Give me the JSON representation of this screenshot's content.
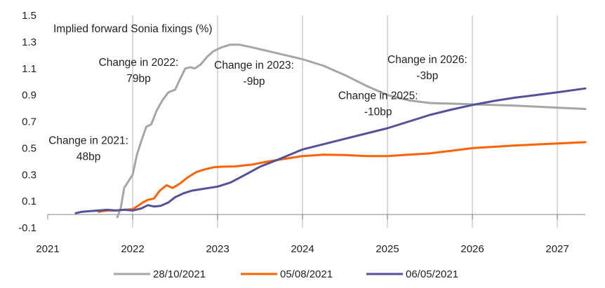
{
  "chart_data": {
    "type": "line",
    "title": "",
    "ylabel": "Implied forward Sonia fixings (%)",
    "xlabel": "",
    "xlim": [
      2021,
      2027.33
    ],
    "ylim": [
      -0.1,
      1.5
    ],
    "x_ticks": [
      2021,
      2022,
      2023,
      2024,
      2025,
      2026,
      2027
    ],
    "x_tick_labels": [
      "2021",
      "2022",
      "2023",
      "2024",
      "2025",
      "2026",
      "2027"
    ],
    "y_ticks": [
      -0.1,
      0.1,
      0.3,
      0.5,
      0.7,
      0.9,
      1.1,
      1.3,
      1.5
    ],
    "y_tick_labels": [
      "-0.1",
      "0.1",
      "0.3",
      "0.5",
      "0.7",
      "0.9",
      "1.1",
      "1.3",
      "1.5"
    ],
    "grid": "vertical",
    "legend": "bottom",
    "series": [
      {
        "name": "28/10/2021",
        "color": "#a6a6a6",
        "points": [
          [
            2021.82,
            -0.02
          ],
          [
            2021.86,
            0.05
          ],
          [
            2021.9,
            0.2
          ],
          [
            2021.95,
            0.25
          ],
          [
            2022.0,
            0.3
          ],
          [
            2022.05,
            0.45
          ],
          [
            2022.1,
            0.55
          ],
          [
            2022.16,
            0.66
          ],
          [
            2022.22,
            0.68
          ],
          [
            2022.28,
            0.78
          ],
          [
            2022.35,
            0.86
          ],
          [
            2022.42,
            0.92
          ],
          [
            2022.5,
            0.94
          ],
          [
            2022.55,
            1.01
          ],
          [
            2022.62,
            1.1
          ],
          [
            2022.68,
            1.11
          ],
          [
            2022.73,
            1.1
          ],
          [
            2022.8,
            1.13
          ],
          [
            2022.88,
            1.19
          ],
          [
            2022.95,
            1.23
          ],
          [
            2023.05,
            1.26
          ],
          [
            2023.15,
            1.28
          ],
          [
            2023.25,
            1.28
          ],
          [
            2023.4,
            1.26
          ],
          [
            2023.6,
            1.23
          ],
          [
            2023.8,
            1.2
          ],
          [
            2024.0,
            1.17
          ],
          [
            2024.25,
            1.12
          ],
          [
            2024.5,
            1.05
          ],
          [
            2024.75,
            0.97
          ],
          [
            2025.0,
            0.9
          ],
          [
            2025.25,
            0.86
          ],
          [
            2025.5,
            0.84
          ],
          [
            2025.75,
            0.835
          ],
          [
            2026.0,
            0.83
          ],
          [
            2026.5,
            0.82
          ],
          [
            2027.0,
            0.805
          ],
          [
            2027.33,
            0.795
          ]
        ]
      },
      {
        "name": "05/08/2021",
        "color": "#ff6200",
        "points": [
          [
            2021.6,
            0.02
          ],
          [
            2021.7,
            0.03
          ],
          [
            2021.8,
            0.03
          ],
          [
            2021.9,
            0.035
          ],
          [
            2022.0,
            0.04
          ],
          [
            2022.05,
            0.06
          ],
          [
            2022.12,
            0.09
          ],
          [
            2022.18,
            0.11
          ],
          [
            2022.25,
            0.12
          ],
          [
            2022.32,
            0.18
          ],
          [
            2022.4,
            0.22
          ],
          [
            2022.47,
            0.2
          ],
          [
            2022.55,
            0.23
          ],
          [
            2022.65,
            0.28
          ],
          [
            2022.75,
            0.32
          ],
          [
            2022.85,
            0.34
          ],
          [
            2022.95,
            0.355
          ],
          [
            2023.05,
            0.36
          ],
          [
            2023.2,
            0.362
          ],
          [
            2023.4,
            0.375
          ],
          [
            2023.6,
            0.4
          ],
          [
            2023.8,
            0.42
          ],
          [
            2024.0,
            0.44
          ],
          [
            2024.25,
            0.45
          ],
          [
            2024.5,
            0.448
          ],
          [
            2024.75,
            0.44
          ],
          [
            2025.0,
            0.44
          ],
          [
            2025.25,
            0.45
          ],
          [
            2025.5,
            0.46
          ],
          [
            2025.75,
            0.48
          ],
          [
            2026.0,
            0.5
          ],
          [
            2026.5,
            0.52
          ],
          [
            2027.0,
            0.535
          ],
          [
            2027.33,
            0.545
          ]
        ]
      },
      {
        "name": "06/05/2021",
        "color": "#525199",
        "points": [
          [
            2021.33,
            0.01
          ],
          [
            2021.4,
            0.02
          ],
          [
            2021.5,
            0.025
          ],
          [
            2021.6,
            0.03
          ],
          [
            2021.7,
            0.035
          ],
          [
            2021.8,
            0.03
          ],
          [
            2021.9,
            0.035
          ],
          [
            2022.0,
            0.03
          ],
          [
            2022.1,
            0.045
          ],
          [
            2022.18,
            0.07
          ],
          [
            2022.25,
            0.06
          ],
          [
            2022.33,
            0.065
          ],
          [
            2022.42,
            0.09
          ],
          [
            2022.5,
            0.13
          ],
          [
            2022.6,
            0.16
          ],
          [
            2022.7,
            0.18
          ],
          [
            2022.8,
            0.19
          ],
          [
            2022.9,
            0.2
          ],
          [
            2023.0,
            0.21
          ],
          [
            2023.15,
            0.24
          ],
          [
            2023.3,
            0.29
          ],
          [
            2023.5,
            0.36
          ],
          [
            2023.7,
            0.41
          ],
          [
            2024.0,
            0.49
          ],
          [
            2024.25,
            0.53
          ],
          [
            2024.5,
            0.57
          ],
          [
            2024.75,
            0.61
          ],
          [
            2025.0,
            0.65
          ],
          [
            2025.25,
            0.7
          ],
          [
            2025.5,
            0.75
          ],
          [
            2025.75,
            0.79
          ],
          [
            2026.0,
            0.825
          ],
          [
            2026.25,
            0.855
          ],
          [
            2026.5,
            0.88
          ],
          [
            2026.75,
            0.9
          ],
          [
            2027.0,
            0.92
          ],
          [
            2027.33,
            0.95
          ]
        ]
      }
    ],
    "annotations": [
      {
        "id": "2021",
        "x": 2021.48,
        "y": 0.53,
        "lines": [
          "Change in 2021:",
          "48bp"
        ]
      },
      {
        "id": "2022",
        "x": 2022.07,
        "y": 1.12,
        "lines": [
          "Change in 2022:",
          "79bp"
        ]
      },
      {
        "id": "2023",
        "x": 2023.43,
        "y": 1.1,
        "lines": [
          "Change in 2023:",
          "-9bp"
        ]
      },
      {
        "id": "2025",
        "x": 2024.89,
        "y": 0.87,
        "lines": [
          "Change in 2025:",
          "-10bp"
        ]
      },
      {
        "id": "2026",
        "x": 2025.47,
        "y": 1.14,
        "lines": [
          "Change in 2026:",
          "-3bp"
        ]
      }
    ]
  }
}
